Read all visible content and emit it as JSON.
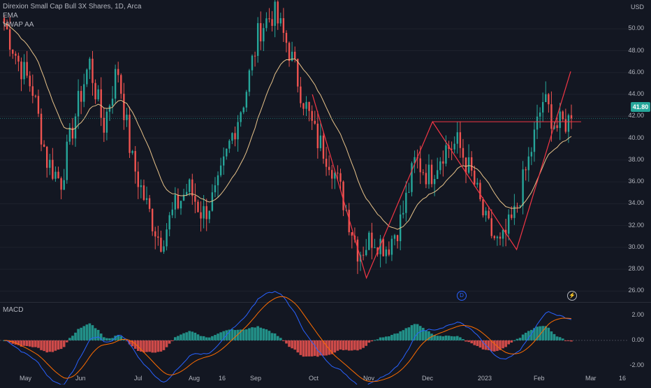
{
  "legend": {
    "symbol": "Direxion Small Cap Bull 3X Shares, 1D, Arca",
    "ema_label": "EMA",
    "vwap_label": "VWAP AA"
  },
  "price_axis": {
    "currency": "USD",
    "ticks": [
      "26.00",
      "28.00",
      "30.00",
      "32.00",
      "34.00",
      "36.00",
      "38.00",
      "40.00",
      "42.00",
      "44.00",
      "46.00",
      "48.00",
      "50.00"
    ],
    "last_price": "41.80"
  },
  "macd_axis": {
    "title": "MACD",
    "ticks": [
      "2.00",
      "0.00",
      "-2.00"
    ]
  },
  "time_axis": {
    "labels": [
      "May",
      "Jun",
      "Jul",
      "Aug",
      "16",
      "Sep",
      "Oct",
      "Nov",
      "Dec",
      "2023",
      "Feb",
      "Mar",
      "16"
    ]
  },
  "events": {
    "dividend_icon": "D",
    "split_icon": "flash"
  },
  "colors": {
    "background": "#131722",
    "up": "#26a69a",
    "down": "#ef5350",
    "ema": "#e8c38a",
    "pattern": "#f23645",
    "macd": "#2962ff",
    "signal": "#ff6d00"
  },
  "chart_data": {
    "type": "candlestick",
    "title": "Direxion Small Cap Bull 3X Shares, 1D, Arca",
    "y_range": [
      25,
      52
    ],
    "macd_range": [
      -2.4,
      3.0
    ],
    "anchors": [
      {
        "label": "May",
        "v": 50.5
      },
      {
        "label": "May",
        "v": 47.0
      },
      {
        "label": "May",
        "v": 44.5
      },
      {
        "label": "May",
        "v": 38.0
      },
      {
        "label": "May",
        "v": 36.0
      },
      {
        "label": "May",
        "v": 42.0
      },
      {
        "label": "Jun",
        "v": 47.0
      },
      {
        "label": "Jun",
        "v": 41.0
      },
      {
        "label": "Jun",
        "v": 46.5
      },
      {
        "label": "Jun",
        "v": 38.0
      },
      {
        "label": "Jun",
        "v": 34.0
      },
      {
        "label": "Jun",
        "v": 30.5
      },
      {
        "label": "Jul",
        "v": 33.5
      },
      {
        "label": "Jul",
        "v": 35.5
      },
      {
        "label": "Jul",
        "v": 33.0
      },
      {
        "label": "Jul",
        "v": 35.0
      },
      {
        "label": "Jul",
        "v": 40.0
      },
      {
        "label": "Aug",
        "v": 44.0
      },
      {
        "label": "Aug",
        "v": 50.0
      },
      {
        "label": "16",
        "v": 51.5
      },
      {
        "label": "16",
        "v": 48.5
      },
      {
        "label": "Sep",
        "v": 44.0
      },
      {
        "label": "Sep",
        "v": 40.0
      },
      {
        "label": "Sep",
        "v": 38.0
      },
      {
        "label": "Sep",
        "v": 34.0
      },
      {
        "label": "Oct",
        "v": 29.5
      },
      {
        "label": "Oct",
        "v": 31.0
      },
      {
        "label": "Oct",
        "v": 30.0
      },
      {
        "label": "Oct",
        "v": 32.5
      },
      {
        "label": "Nov",
        "v": 38.0
      },
      {
        "label": "Nov",
        "v": 36.5
      },
      {
        "label": "Nov",
        "v": 39.0
      },
      {
        "label": "Dec",
        "v": 39.5
      },
      {
        "label": "Dec",
        "v": 36.5
      },
      {
        "label": "Dec",
        "v": 32.0
      },
      {
        "label": "2023",
        "v": 30.0
      },
      {
        "label": "2023",
        "v": 33.0
      },
      {
        "label": "2023",
        "v": 38.0
      },
      {
        "label": "Feb",
        "v": 43.5
      },
      {
        "label": "Feb",
        "v": 41.0
      },
      {
        "label": "Feb",
        "v": 41.8
      }
    ],
    "pattern_points": [
      {
        "x_index": 0.52,
        "y": 44.0
      },
      {
        "x_index": 0.61,
        "y": 27.2
      },
      {
        "x_index": 0.72,
        "y": 41.5
      },
      {
        "x_index": 0.86,
        "y": 29.8
      },
      {
        "x_index": 0.95,
        "y": 46.1
      }
    ],
    "neckline_y": 41.5
  }
}
